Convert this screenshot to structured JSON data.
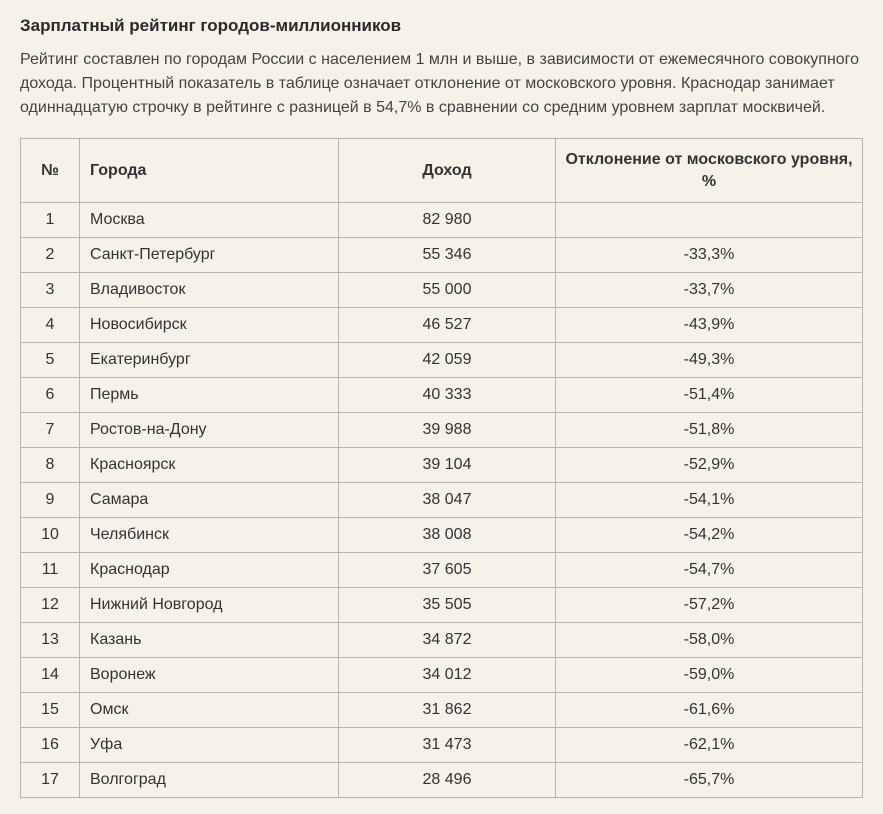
{
  "title": "Зарплатный рейтинг городов-миллионников",
  "description": "Рейтинг составлен по городам России с населением 1 млн и выше, в зависимости от ежемесячного совокупного дохода. Процентный показатель в таблице означает отклонение от московского уровня. Краснодар занимает одиннадцатую строчку в рейтинге с разницей в 54,7% в сравнении со средним уровнем зарплат москвичей.",
  "table": {
    "columns": {
      "num": "№",
      "city": "Города",
      "income": "Доход",
      "deviation": "Отклонение от московского уровня, %"
    },
    "rows": [
      {
        "n": "1",
        "city": "Москва",
        "income": "82 980",
        "dev": ""
      },
      {
        "n": "2",
        "city": "Санкт-Петербург",
        "income": "55 346",
        "dev": "-33,3%"
      },
      {
        "n": "3",
        "city": "Владивосток",
        "income": "55 000",
        "dev": "-33,7%"
      },
      {
        "n": "4",
        "city": "Новосибирск",
        "income": "46 527",
        "dev": "-43,9%"
      },
      {
        "n": "5",
        "city": "Екатеринбург",
        "income": "42 059",
        "dev": "-49,3%"
      },
      {
        "n": "6",
        "city": "Пермь",
        "income": "40 333",
        "dev": "-51,4%"
      },
      {
        "n": "7",
        "city": "Ростов-на-Дону",
        "income": "39 988",
        "dev": "-51,8%"
      },
      {
        "n": "8",
        "city": "Красноярск",
        "income": "39 104",
        "dev": "-52,9%"
      },
      {
        "n": "9",
        "city": "Самара",
        "income": "38 047",
        "dev": "-54,1%"
      },
      {
        "n": "10",
        "city": "Челябинск",
        "income": "38 008",
        "dev": "-54,2%"
      },
      {
        "n": "11",
        "city": "Краснодар",
        "income": "37 605",
        "dev": "-54,7%"
      },
      {
        "n": "12",
        "city": "Нижний Новгород",
        "income": "35 505",
        "dev": "-57,2%"
      },
      {
        "n": "13",
        "city": "Казань",
        "income": "34 872",
        "dev": "-58,0%"
      },
      {
        "n": "14",
        "city": "Воронеж",
        "income": "34 012",
        "dev": "-59,0%"
      },
      {
        "n": "15",
        "city": "Омск",
        "income": "31 862",
        "dev": "-61,6%"
      },
      {
        "n": "16",
        "city": "Уфа",
        "income": "31 473",
        "dev": "-62,1%"
      },
      {
        "n": "17",
        "city": "Волгоград",
        "income": "28 496",
        "dev": "-65,7%"
      }
    ]
  },
  "style": {
    "background_color": "#f5f2ea",
    "text_color": "#333333",
    "border_color": "#b8b5ad",
    "title_fontsize": 17,
    "body_fontsize": 16
  }
}
